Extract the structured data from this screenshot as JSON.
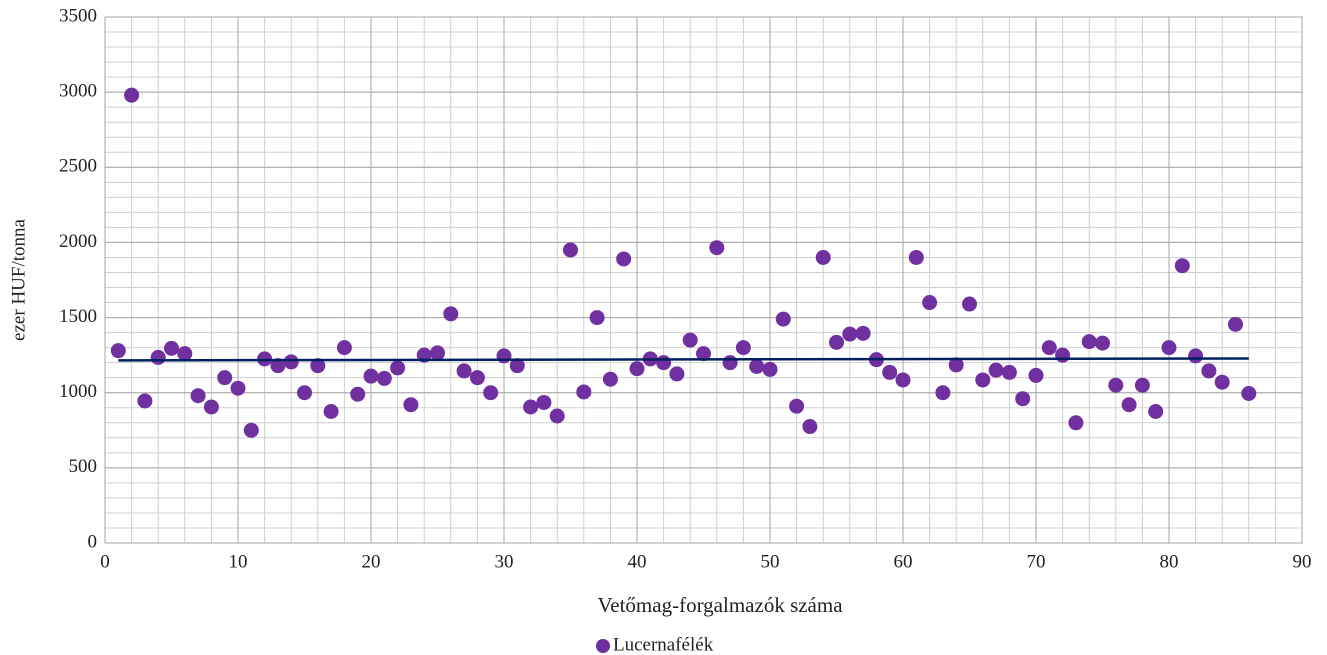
{
  "chart_data": {
    "type": "scatter",
    "x_label": "Vetőmag-forgalmazók száma",
    "y_label": "ezer HUF/tonna",
    "series": [
      {
        "name": "Lucernafélék",
        "color": "#7030a0",
        "x": [
          1,
          2,
          3,
          4,
          5,
          6,
          7,
          8,
          9,
          10,
          11,
          12,
          13,
          14,
          15,
          16,
          17,
          18,
          19,
          20,
          21,
          22,
          23,
          24,
          25,
          26,
          27,
          28,
          29,
          30,
          31,
          32,
          33,
          34,
          35,
          36,
          37,
          38,
          39,
          40,
          41,
          42,
          43,
          44,
          45,
          46,
          47,
          48,
          49,
          50,
          51,
          52,
          53,
          54,
          55,
          56,
          57,
          58,
          59,
          60,
          61,
          62,
          63,
          64,
          65,
          66,
          67,
          68,
          69,
          70,
          71,
          72,
          73,
          74,
          75,
          76,
          77,
          78,
          79,
          80,
          81,
          82,
          83,
          84,
          85,
          86
        ],
        "values": [
          1280,
          2980,
          945,
          1235,
          1295,
          1260,
          980,
          905,
          1100,
          1030,
          750,
          1225,
          1180,
          1205,
          1000,
          1180,
          875,
          1300,
          990,
          1110,
          1095,
          1165,
          920,
          1250,
          1265,
          1525,
          1145,
          1100,
          1000,
          1245,
          1180,
          905,
          935,
          845,
          1950,
          1005,
          1500,
          1090,
          1890,
          1160,
          1225,
          1200,
          1125,
          1350,
          1260,
          1965,
          1200,
          1300,
          1175,
          1155,
          1490,
          910,
          775,
          1900,
          1335,
          1390,
          1395,
          1220,
          1135,
          1085,
          1900,
          1600,
          1000,
          1185,
          1590,
          1085,
          1150,
          1135,
          960,
          1115,
          1300,
          1250,
          800,
          1340,
          1330,
          1050,
          920,
          1050,
          875,
          1300,
          1845,
          1245,
          1145,
          1070,
          1455,
          995
        ]
      }
    ],
    "trendline": {
      "color": "#002060",
      "x": [
        1,
        86
      ],
      "values": [
        1215,
        1228
      ]
    },
    "xlim": [
      0,
      90
    ],
    "xticks": [
      0,
      10,
      20,
      30,
      40,
      50,
      60,
      70,
      80,
      90
    ],
    "ylim": [
      0,
      3500
    ],
    "yticks": [
      0,
      500,
      1000,
      1500,
      2000,
      2500,
      3000,
      3500
    ],
    "grid": true,
    "minor_grid": {
      "x": 2,
      "y": 100
    },
    "legend": "bottom"
  }
}
